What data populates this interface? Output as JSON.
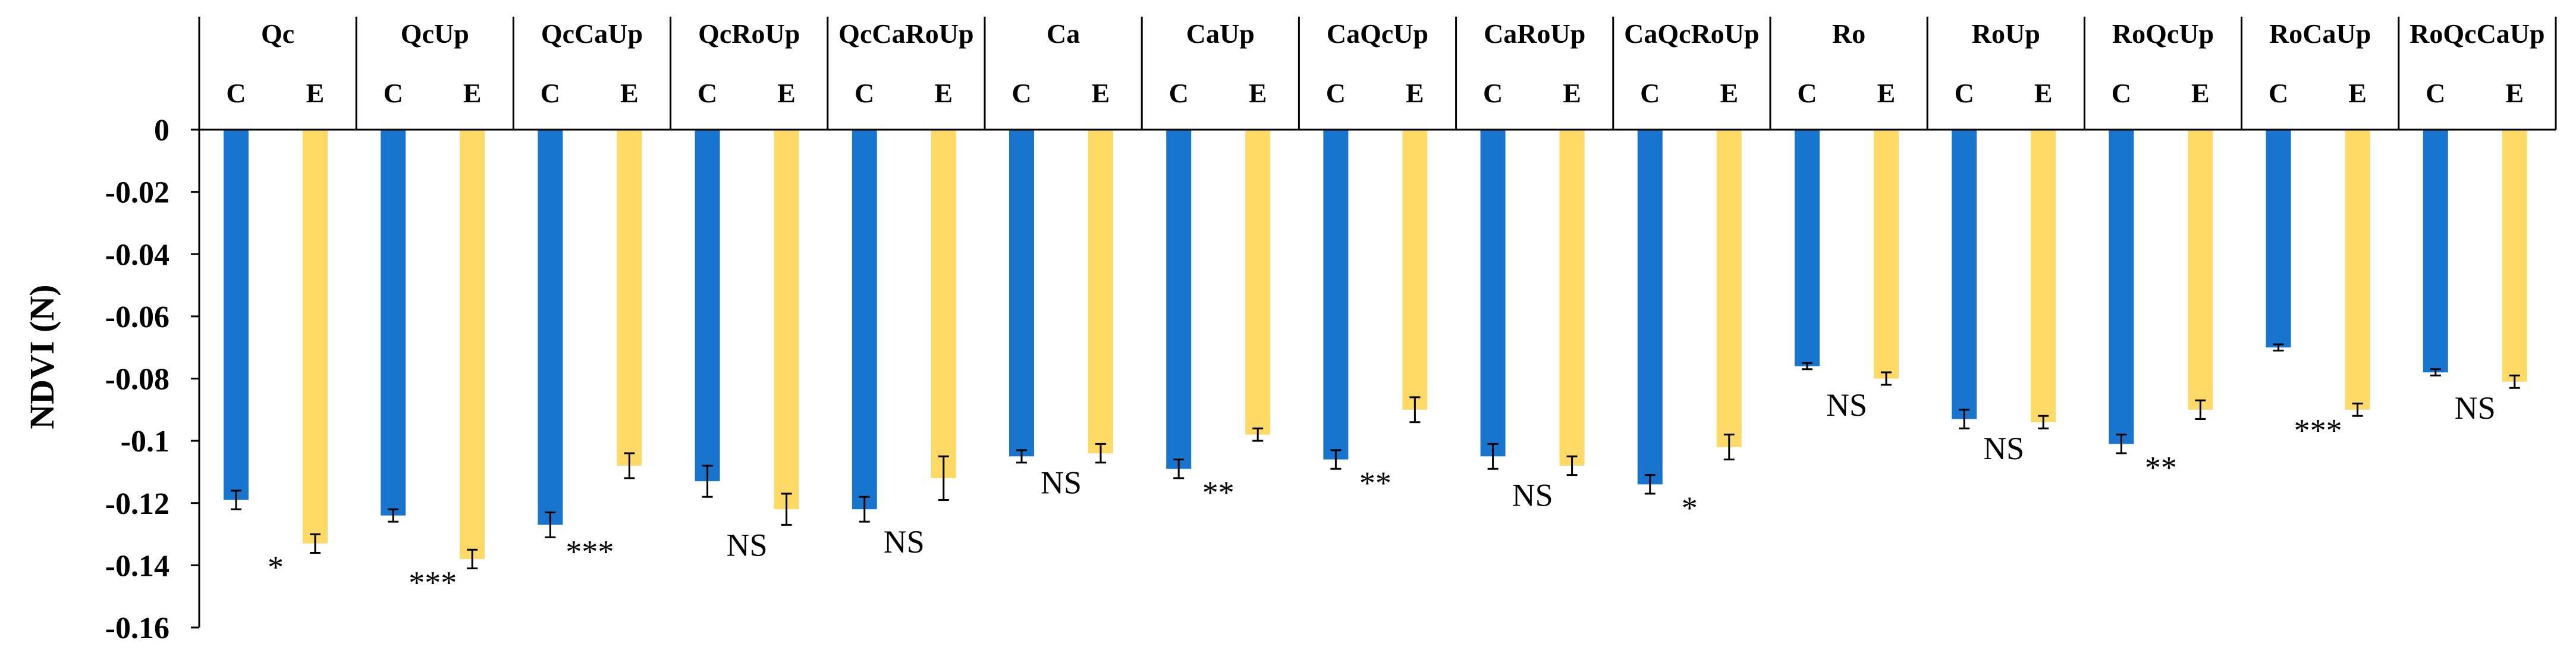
{
  "chart_data": {
    "type": "bar",
    "title": "",
    "xlabel": "",
    "ylabel": "NDVI (N)",
    "ylim": [
      -0.16,
      0
    ],
    "yticks": [
      "0",
      "-0.02",
      "-0.04",
      "-0.06",
      "-0.08",
      "-0.1",
      "-0.12",
      "-0.14",
      "-0.16"
    ],
    "grid": false,
    "legend": "none",
    "sub_categories": [
      "C",
      "E"
    ],
    "colors": {
      "C": "#1874cd",
      "E": "#ffd966"
    },
    "groups": [
      {
        "label": "Qc",
        "C": -0.119,
        "C_err": 0.003,
        "E": -0.133,
        "E_err": 0.003,
        "sig": "*"
      },
      {
        "label": "QcUp",
        "C": -0.124,
        "C_err": 0.002,
        "E": -0.138,
        "E_err": 0.003,
        "sig": "***"
      },
      {
        "label": "QcCaUp",
        "C": -0.127,
        "C_err": 0.004,
        "E": -0.108,
        "E_err": 0.004,
        "sig": "***"
      },
      {
        "label": "QcRoUp",
        "C": -0.113,
        "C_err": 0.005,
        "E": -0.122,
        "E_err": 0.005,
        "sig": "NS"
      },
      {
        "label": "QcCaRoUp",
        "C": -0.122,
        "C_err": 0.004,
        "E": -0.112,
        "E_err": 0.007,
        "sig": "NS"
      },
      {
        "label": "Ca",
        "C": -0.105,
        "C_err": 0.002,
        "E": -0.104,
        "E_err": 0.003,
        "sig": "NS"
      },
      {
        "label": "CaUp",
        "C": -0.109,
        "C_err": 0.003,
        "E": -0.098,
        "E_err": 0.002,
        "sig": "**"
      },
      {
        "label": "CaQcUp",
        "C": -0.106,
        "C_err": 0.003,
        "E": -0.09,
        "E_err": 0.004,
        "sig": "**"
      },
      {
        "label": "CaRoUp",
        "C": -0.105,
        "C_err": 0.004,
        "E": -0.108,
        "E_err": 0.003,
        "sig": "NS"
      },
      {
        "label": "CaQcRoUp",
        "C": -0.114,
        "C_err": 0.003,
        "E": -0.102,
        "E_err": 0.004,
        "sig": "*"
      },
      {
        "label": "Ro",
        "C": -0.076,
        "C_err": 0.001,
        "E": -0.08,
        "E_err": 0.002,
        "sig": "NS"
      },
      {
        "label": "RoUp",
        "C": -0.093,
        "C_err": 0.003,
        "E": -0.094,
        "E_err": 0.002,
        "sig": "NS"
      },
      {
        "label": "RoQcUp",
        "C": -0.101,
        "C_err": 0.003,
        "E": -0.09,
        "E_err": 0.003,
        "sig": "**"
      },
      {
        "label": "RoCaUp",
        "C": -0.07,
        "C_err": 0.001,
        "E": -0.09,
        "E_err": 0.002,
        "sig": "***"
      },
      {
        "label": "RoQcCaUp",
        "C": -0.078,
        "C_err": 0.001,
        "E": -0.081,
        "E_err": 0.002,
        "sig": "NS"
      }
    ]
  }
}
